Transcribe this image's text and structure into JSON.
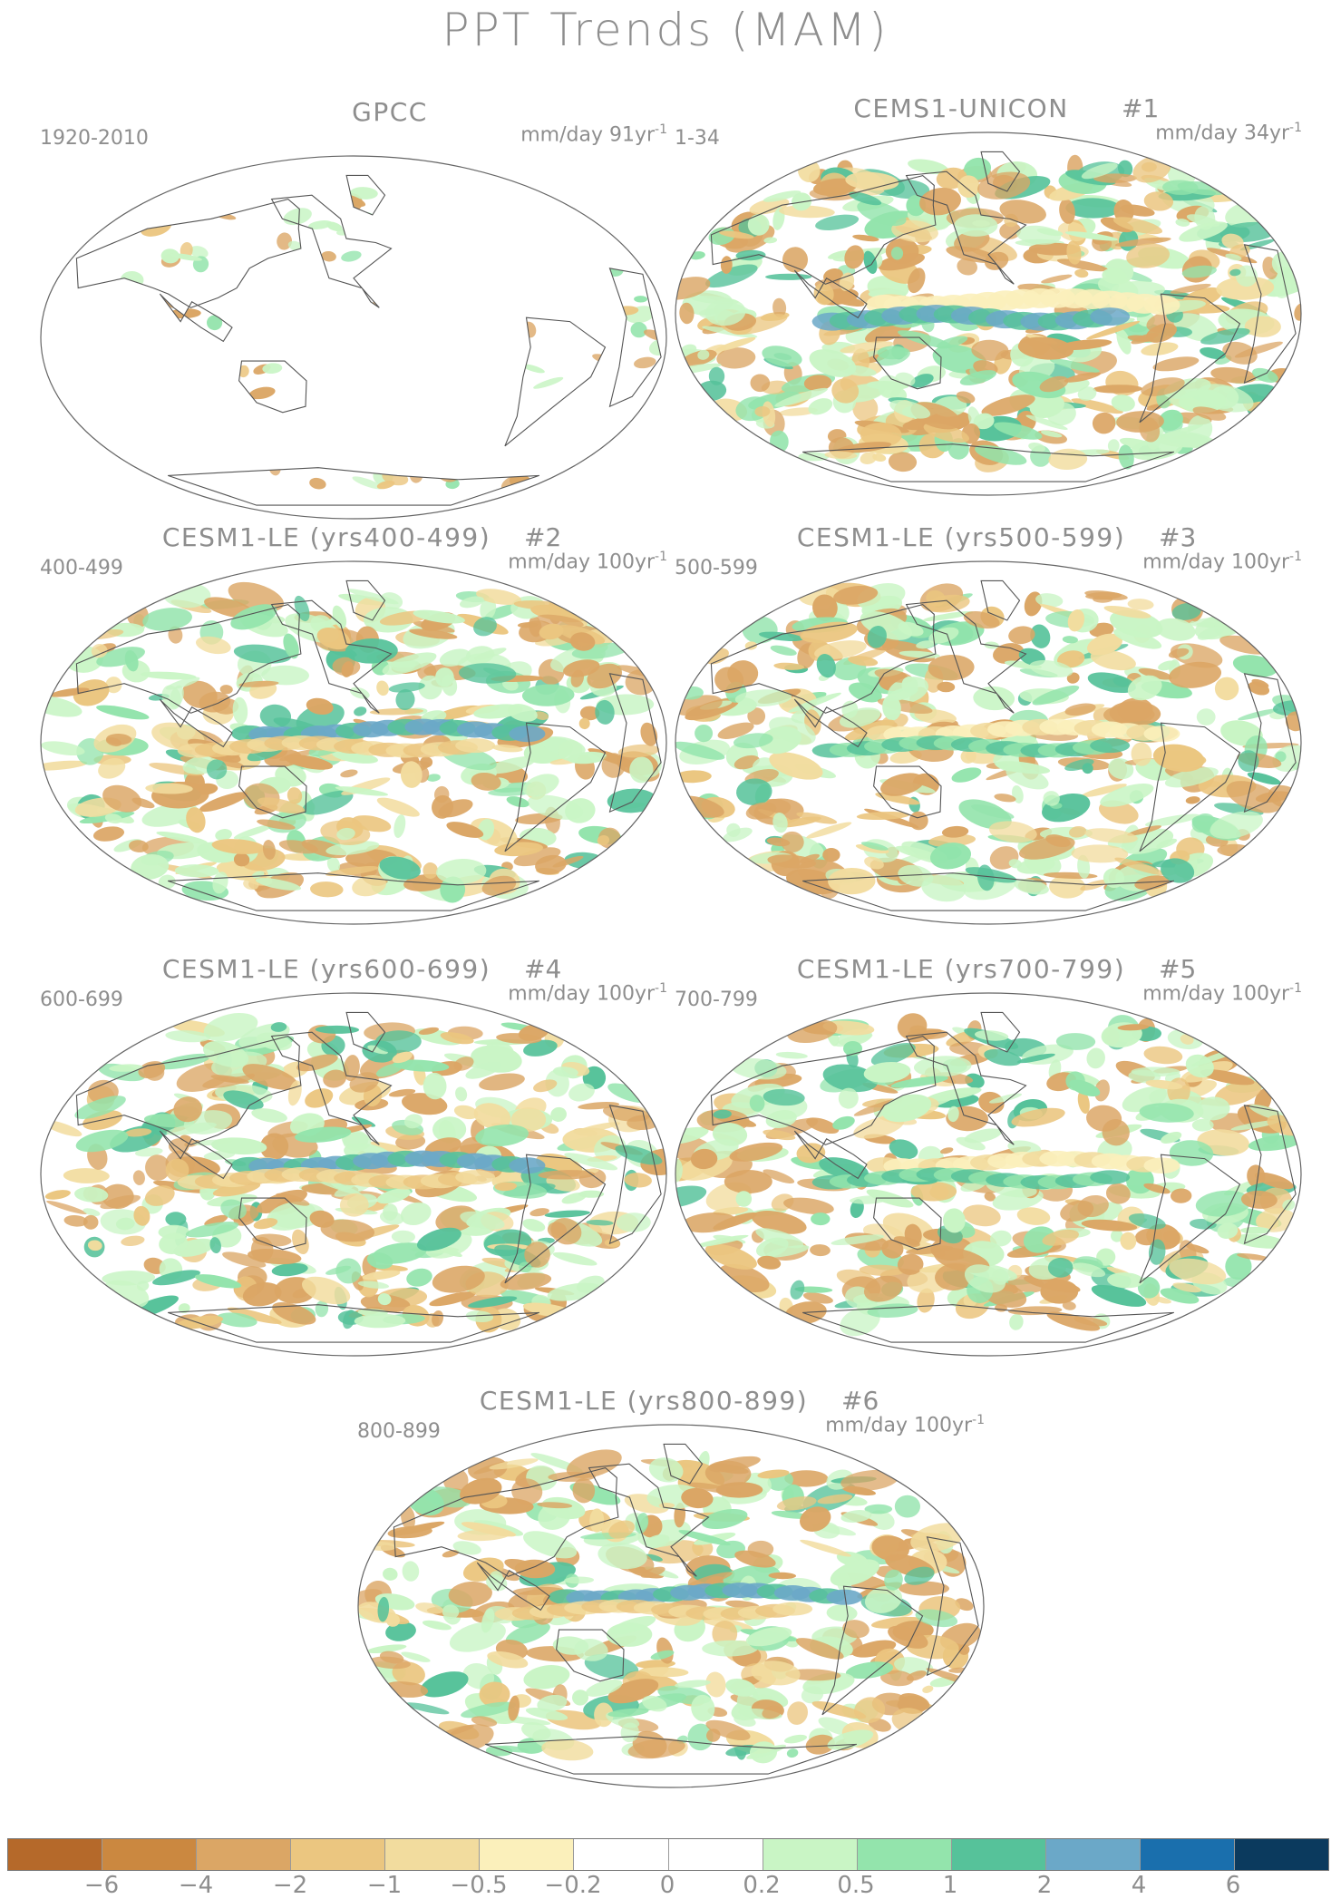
{
  "title": "PPT Trends (MAM)",
  "panels": [
    {
      "id": "p0",
      "title": "GPCC",
      "number": "",
      "period": "1920-2010",
      "units_base": "mm/day 91yr",
      "units_exp": "-1",
      "intensity": 0.25,
      "dataset": "obs"
    },
    {
      "id": "p1",
      "title": "CEMS1-UNICON",
      "number": "#1",
      "period": "1-34",
      "units_base": "mm/day 34yr",
      "units_exp": "-1",
      "intensity": 1.0,
      "dataset": "model"
    },
    {
      "id": "p2",
      "title": "CESM1-LE (yrs400-499)",
      "number": "#2",
      "period": "400-499",
      "units_base": "mm/day 100yr",
      "units_exp": "-1",
      "intensity": 0.6,
      "dataset": "model"
    },
    {
      "id": "p3",
      "title": "CESM1-LE (yrs500-599)",
      "number": "#3",
      "period": "500-599",
      "units_base": "mm/day 100yr",
      "units_exp": "-1",
      "intensity": 0.6,
      "dataset": "model"
    },
    {
      "id": "p4",
      "title": "CESM1-LE (yrs600-699)",
      "number": "#4",
      "period": "600-699",
      "units_base": "mm/day 100yr",
      "units_exp": "-1",
      "intensity": 0.6,
      "dataset": "model"
    },
    {
      "id": "p5",
      "title": "CESM1-LE (yrs700-799)",
      "number": "#5",
      "period": "700-799",
      "units_base": "mm/day 100yr",
      "units_exp": "-1",
      "intensity": 0.55,
      "dataset": "model"
    },
    {
      "id": "p6",
      "title": "CESM1-LE (yrs800-899)",
      "number": "#6",
      "period": "800-899",
      "units_base": "mm/day 100yr",
      "units_exp": "-1",
      "intensity": 0.5,
      "dataset": "model"
    }
  ],
  "colorbar": {
    "colors": [
      "#b5692a",
      "#cb8840",
      "#dba665",
      "#ebc680",
      "#f2dc9e",
      "#fbf0bb",
      "#ffffff",
      "#ffffff",
      "#c9f5c5",
      "#93e4ac",
      "#56c29a",
      "#6ba8c8",
      "#1a6fad",
      "#0b3a5e"
    ],
    "labels": [
      "−6",
      "−4",
      "−2",
      "−1",
      "−0.5",
      "−0.2",
      "0",
      "0.2",
      "0.5",
      "1",
      "2",
      "4",
      "6"
    ]
  }
}
